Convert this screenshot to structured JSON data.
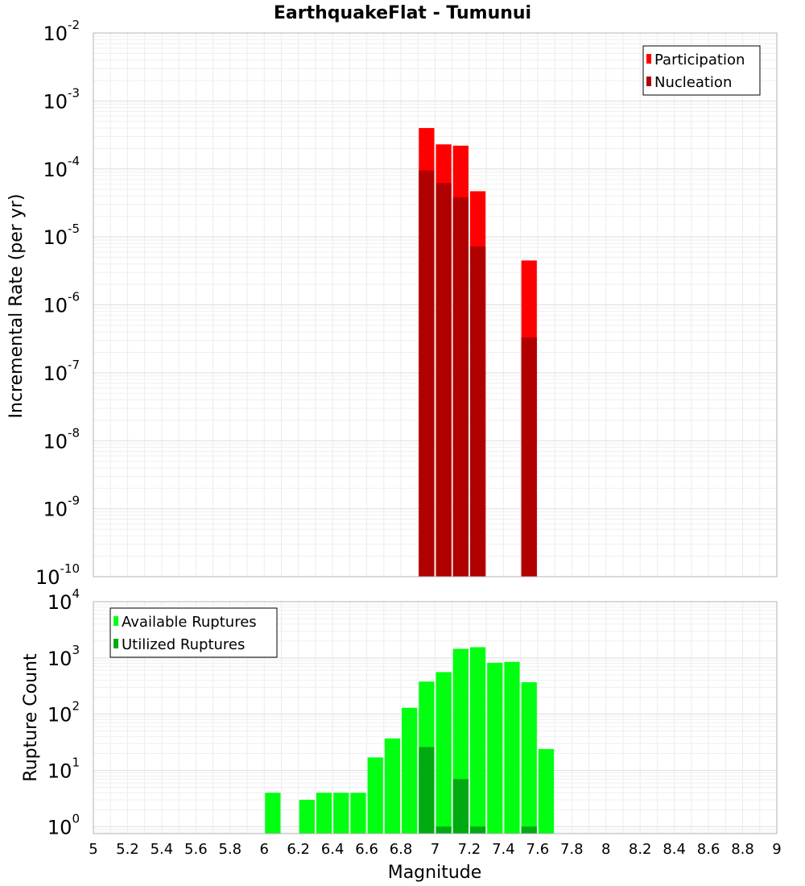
{
  "chart_data": [
    {
      "type": "bar",
      "title": "EarthquakeFlat - Tumunui",
      "xlabel": "Magnitude",
      "ylabel": "Incremental Rate (per yr)",
      "yscale": "log",
      "xlim": [
        5,
        9
      ],
      "ylim": [
        1e-10,
        0.01
      ],
      "grid": true,
      "legend_position": "top-right",
      "bin_width": 0.1,
      "series": [
        {
          "name": "Participation",
          "color": "#ff0000",
          "x": [
            6.95,
            7.05,
            7.15,
            7.25,
            7.55
          ],
          "values": [
            0.0004,
            0.00023,
            0.00022,
            4.7e-05,
            4.5e-06
          ]
        },
        {
          "name": "Nucleation",
          "color": "#b00000",
          "x": [
            6.95,
            7.05,
            7.15,
            7.25,
            7.55
          ],
          "values": [
            9.5e-05,
            6.2e-05,
            3.8e-05,
            7.2e-06,
            3.3e-07
          ]
        }
      ]
    },
    {
      "type": "bar",
      "xlabel": "Magnitude",
      "ylabel": "Rupture Count",
      "yscale": "log",
      "xlim": [
        5,
        9
      ],
      "ylim": [
        0.75,
        10000
      ],
      "grid": true,
      "legend_position": "top-left",
      "bin_width": 0.1,
      "series": [
        {
          "name": "Available Ruptures",
          "color": "#00ff11",
          "x": [
            6.05,
            6.25,
            6.35,
            6.45,
            6.55,
            6.65,
            6.75,
            6.85,
            6.95,
            7.05,
            7.15,
            7.25,
            7.35,
            7.45,
            7.55,
            7.65
          ],
          "values": [
            4,
            3,
            4,
            4,
            4,
            17,
            37,
            130,
            380,
            560,
            1450,
            1550,
            820,
            850,
            370,
            24
          ]
        },
        {
          "name": "Utilized Ruptures",
          "color": "#00aa11",
          "x": [
            6.95,
            7.05,
            7.15,
            7.25,
            7.55
          ],
          "values": [
            26,
            1,
            7,
            1,
            1
          ]
        }
      ]
    }
  ],
  "x_ticks": [
    "5",
    "5.2",
    "5.4",
    "5.6",
    "5.8",
    "6",
    "6.2",
    "6.4",
    "6.6",
    "6.8",
    "7",
    "7.2",
    "7.4",
    "7.6",
    "7.8",
    "8",
    "8.2",
    "8.4",
    "8.6",
    "8.8",
    "9"
  ],
  "top_y_ticks": {
    "base": "10",
    "exponents": [
      "-10",
      "-9",
      "-8",
      "-7",
      "-6",
      "-5",
      "-4",
      "-3",
      "-2"
    ]
  },
  "bottom_y_ticks": {
    "base": "10",
    "exponents": [
      "0",
      "1",
      "2",
      "3",
      "4"
    ]
  }
}
